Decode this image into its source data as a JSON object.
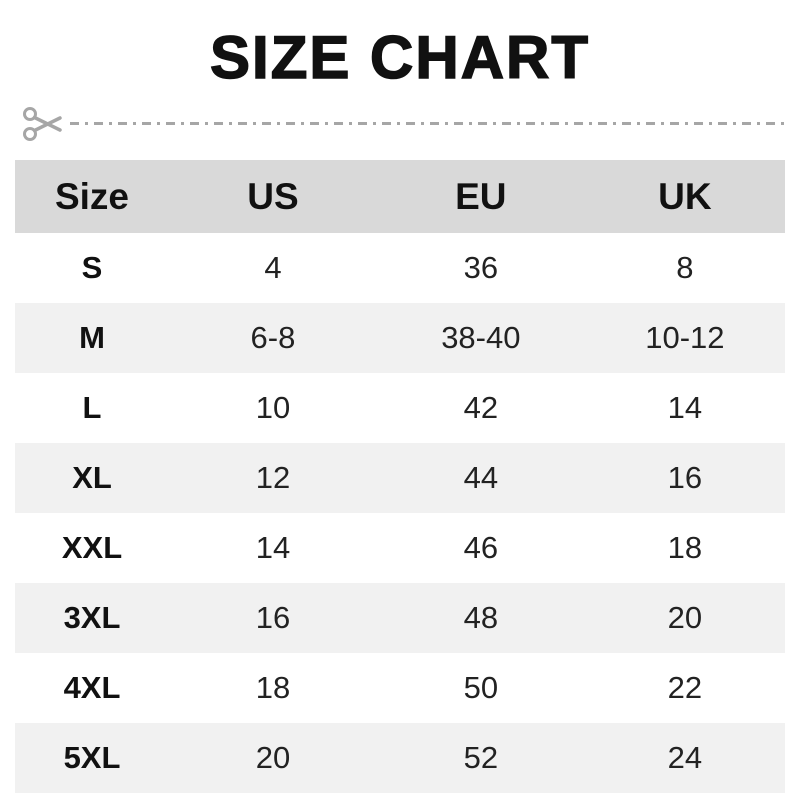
{
  "title": "SIZE CHART",
  "cut_line": {
    "icon": "scissors-icon",
    "style": "dash-dot",
    "color": "#a6a6a6"
  },
  "colors": {
    "header_bg": "#d9d9d9",
    "row_bg": "#ffffff",
    "row_alt_bg": "#f1f1f1",
    "text": "#1a1a1a",
    "title_text": "#111111"
  },
  "chart_data": {
    "type": "table",
    "title": "SIZE CHART",
    "columns": [
      "Size",
      "US",
      "EU",
      "UK"
    ],
    "rows": [
      [
        "S",
        "4",
        "36",
        "8"
      ],
      [
        "M",
        "6-8",
        "38-40",
        "10-12"
      ],
      [
        "L",
        "10",
        "42",
        "14"
      ],
      [
        "XL",
        "12",
        "44",
        "16"
      ],
      [
        "XXL",
        "14",
        "46",
        "18"
      ],
      [
        "3XL",
        "16",
        "48",
        "20"
      ],
      [
        "4XL",
        "18",
        "50",
        "22"
      ],
      [
        "5XL",
        "20",
        "52",
        "24"
      ]
    ]
  }
}
